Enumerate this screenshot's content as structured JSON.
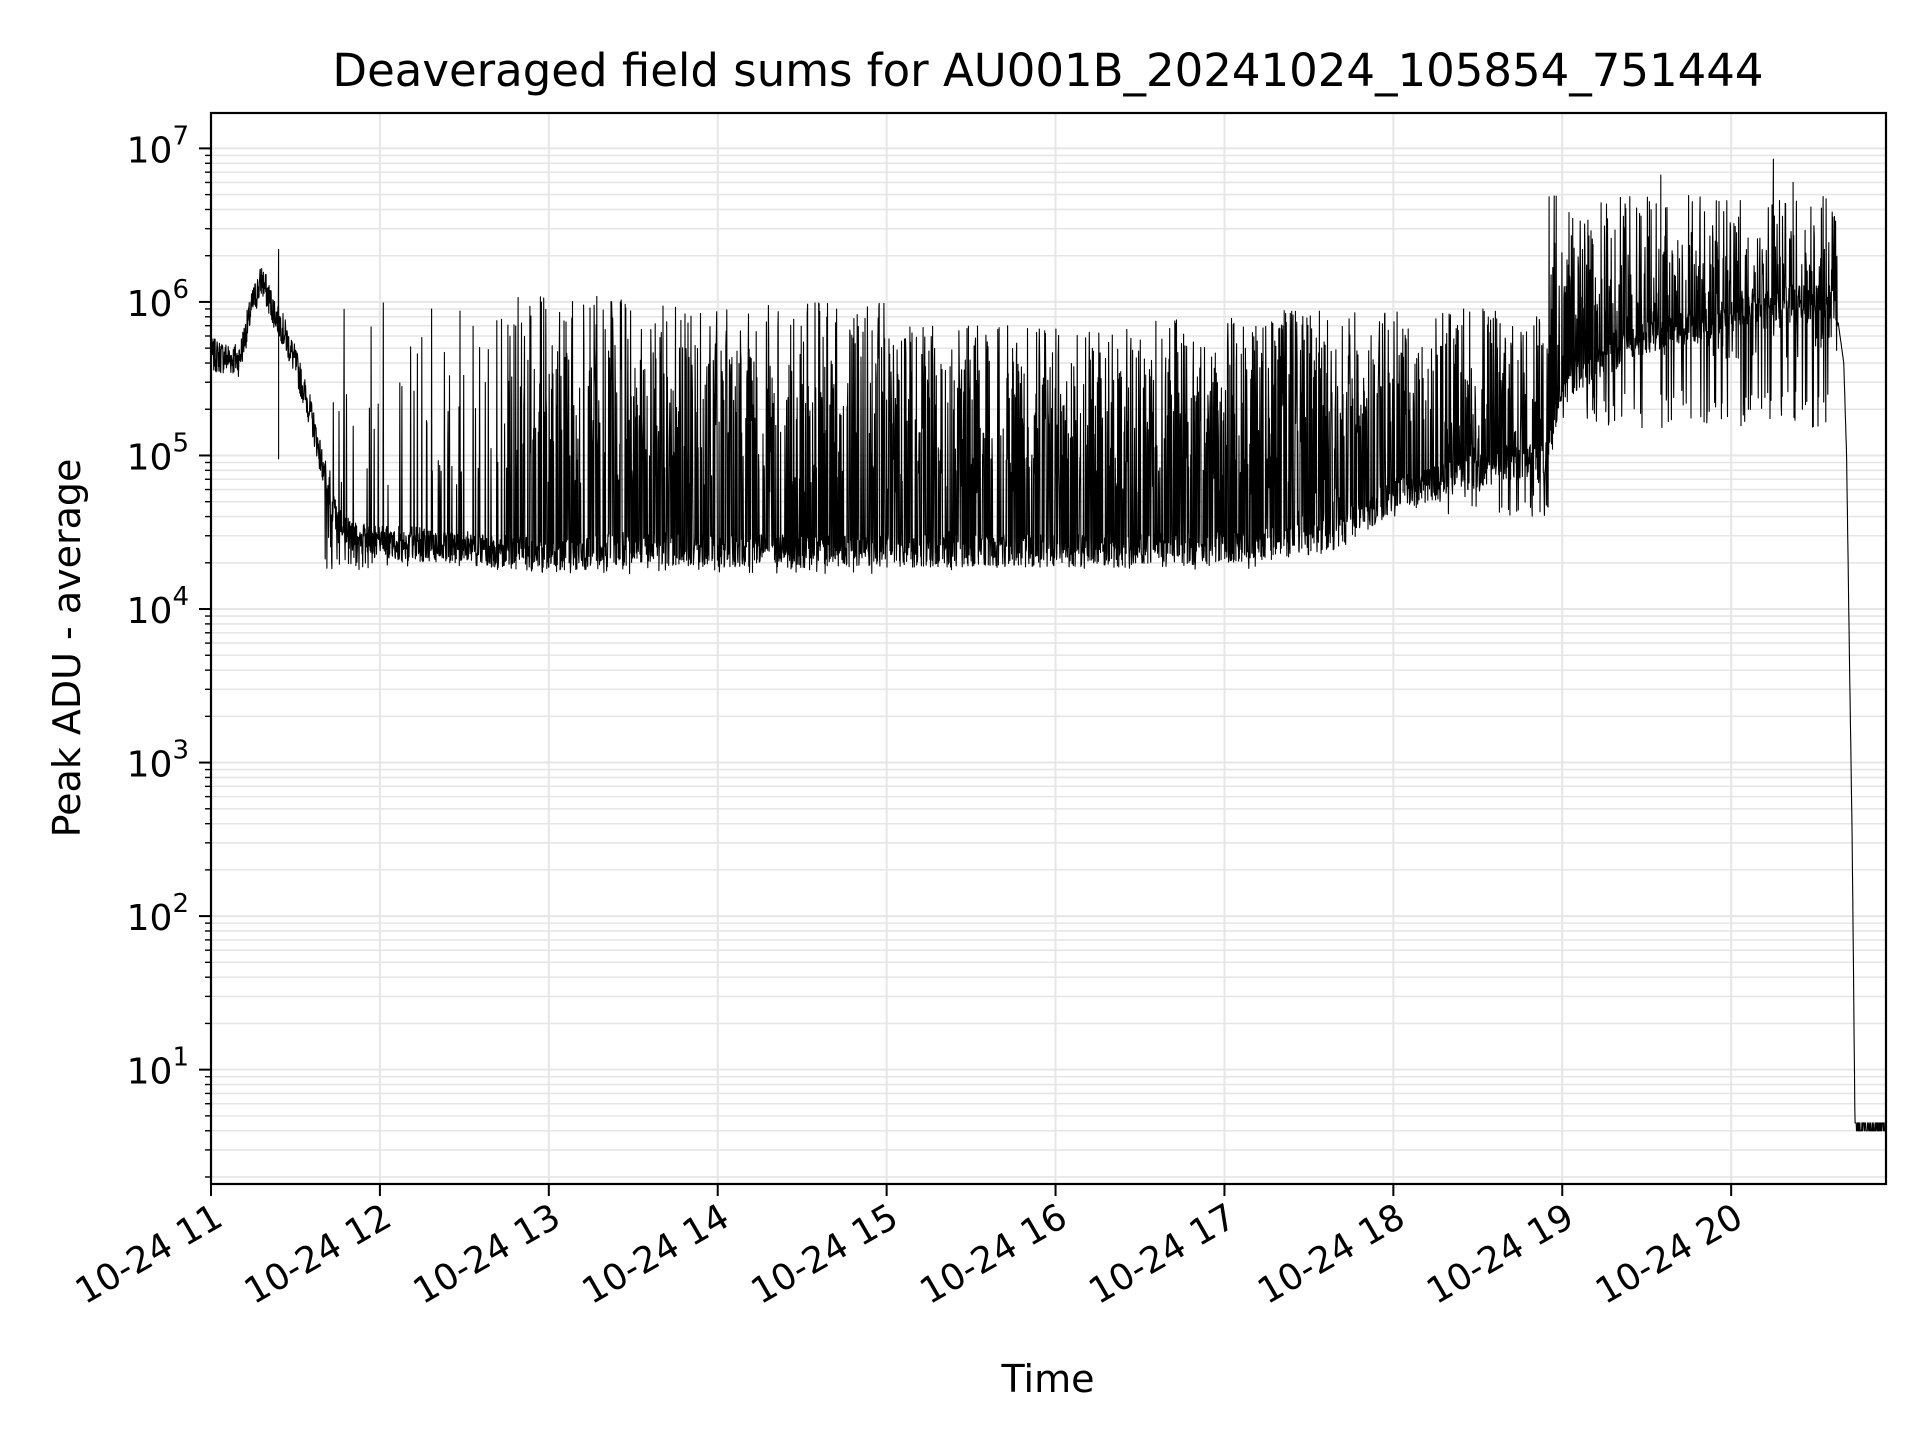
{
  "chart_data": {
    "type": "line",
    "title": "Deaveraged field sums for AU001B_20241024_105854_751444",
    "xlabel": "Time",
    "ylabel": "Peak ADU - average",
    "yscale": "log",
    "ylim": [
      1.8,
      17000000
    ],
    "xlim": [
      "2024-10-24 11:00",
      "2024-10-24 20:55"
    ],
    "x_tick_labels": [
      "10-24 11",
      "10-24 12",
      "10-24 13",
      "10-24 14",
      "10-24 15",
      "10-24 16",
      "10-24 17",
      "10-24 18",
      "10-24 19",
      "10-24 20"
    ],
    "y_tick_labels": [
      {
        "base": "10",
        "exp": "1"
      },
      {
        "base": "10",
        "exp": "2"
      },
      {
        "base": "10",
        "exp": "3"
      },
      {
        "base": "10",
        "exp": "4"
      },
      {
        "base": "10",
        "exp": "5"
      },
      {
        "base": "10",
        "exp": "6"
      },
      {
        "base": "10",
        "exp": "7"
      }
    ],
    "grid": true,
    "line_color": "#000000",
    "grid_color": "#e6e6e6",
    "series": [
      {
        "points": [
          [
            "2024-10-24 11:00",
            450000
          ],
          [
            "2024-10-24 11:10",
            420000
          ],
          [
            "2024-10-24 11:15",
            1000000
          ],
          [
            "2024-10-24 11:18",
            1400000
          ],
          [
            "2024-10-24 11:22",
            900000
          ],
          [
            "2024-10-24 11:25",
            700000
          ],
          [
            "2024-10-24 11:30",
            400000
          ],
          [
            "2024-10-24 11:35",
            200000
          ],
          [
            "2024-10-24 11:40",
            80000
          ],
          [
            "2024-10-24 11:45",
            35000
          ],
          [
            "2024-10-24 11:55",
            28000
          ],
          [
            "2024-10-24 12:30",
            25000
          ],
          [
            "2024-10-24 13:00",
            22000
          ],
          [
            "2024-10-24 13:30",
            25000
          ],
          [
            "2024-10-24 14:00",
            24000
          ],
          [
            "2024-10-24 15:00",
            24000
          ],
          [
            "2024-10-24 16:00",
            24000
          ],
          [
            "2024-10-24 16:30",
            24000
          ],
          [
            "2024-10-24 17:00",
            25000
          ],
          [
            "2024-10-24 17:40",
            30000
          ],
          [
            "2024-10-24 18:00",
            55000
          ],
          [
            "2024-10-24 18:30",
            80000
          ],
          [
            "2024-10-24 18:55",
            100000
          ],
          [
            "2024-10-24 19:00",
            300000
          ],
          [
            "2024-10-24 19:30",
            600000
          ],
          [
            "2024-10-24 20:00",
            800000
          ],
          [
            "2024-10-24 20:20",
            1000000
          ],
          [
            "2024-10-24 20:37",
            1000000
          ],
          [
            "2024-10-24 20:40",
            400000
          ],
          [
            "2024-10-24 20:41",
            100000
          ],
          [
            "2024-10-24 20:42",
            5000
          ],
          [
            "2024-10-24 20:43",
            300
          ],
          [
            "2024-10-24 20:44",
            4
          ],
          [
            "2024-10-24 20:55",
            4
          ]
        ],
        "oscillation_bands": [
          {
            "from": "2024-10-24 11:40",
            "to": "2024-10-24 12:45",
            "low": 18000,
            "high": 1100000,
            "spike_fraction": 0.2
          },
          {
            "from": "2024-10-24 12:45",
            "to": "2024-10-24 13:30",
            "low": 17000,
            "high": 1100000,
            "spike_fraction": 0.7
          },
          {
            "from": "2024-10-24 13:30",
            "to": "2024-10-24 15:00",
            "low": 17000,
            "high": 1000000,
            "spike_fraction": 0.8
          },
          {
            "from": "2024-10-24 15:00",
            "to": "2024-10-24 16:30",
            "low": 18000,
            "high": 700000,
            "spike_fraction": 0.8
          },
          {
            "from": "2024-10-24 16:30",
            "to": "2024-10-24 17:20",
            "low": 18000,
            "high": 800000,
            "spike_fraction": 0.75
          },
          {
            "from": "2024-10-24 17:20",
            "to": "2024-10-24 18:55",
            "low": 40000,
            "high": 900000,
            "spike_fraction": 0.8
          },
          {
            "from": "2024-10-24 18:55",
            "to": "2024-10-24 20:38",
            "low": 150000,
            "high": 5000000,
            "spike_fraction": 0.8
          }
        ],
        "notable_peaks": [
          [
            "2024-10-24 11:24",
            2200000
          ],
          [
            "2024-10-24 11:24",
            95000
          ],
          [
            "2024-10-24 19:35",
            6700000
          ],
          [
            "2024-10-24 20:15",
            8500000
          ],
          [
            "2024-10-24 20:22",
            6000000
          ]
        ]
      }
    ]
  }
}
